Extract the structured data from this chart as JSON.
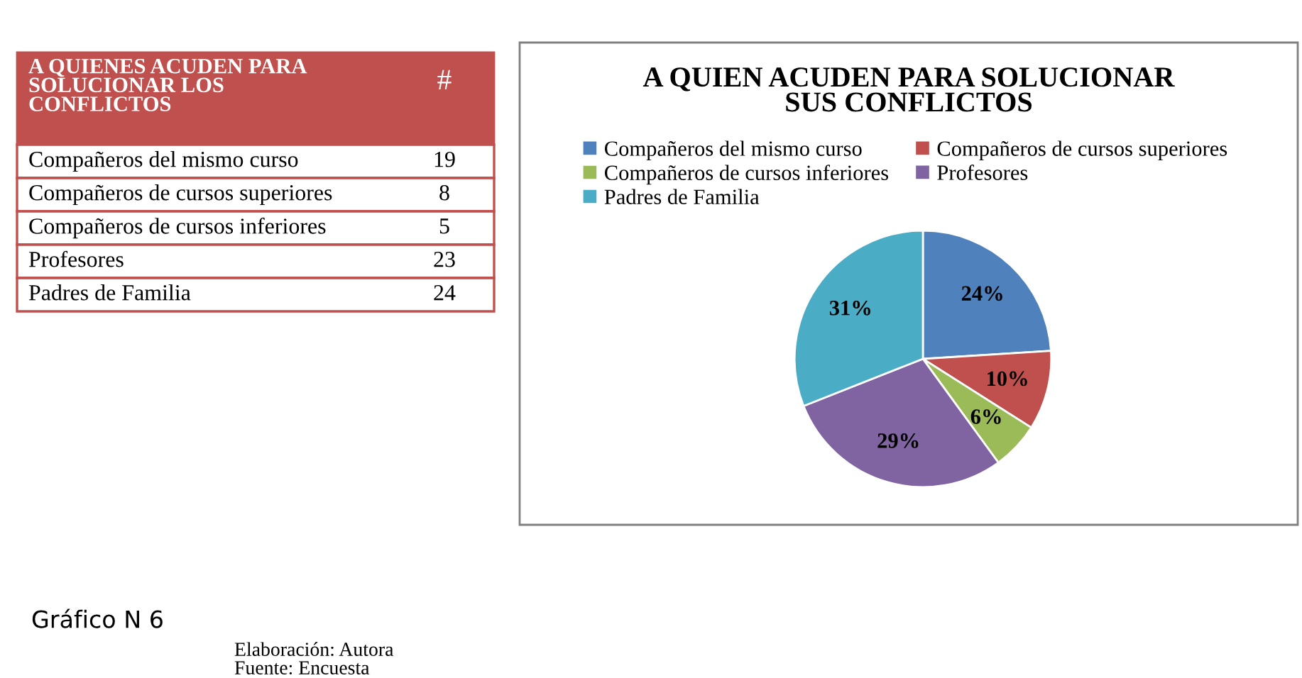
{
  "chart_data": {
    "type": "pie",
    "title": "A QUIEN ACUDEN PARA SOLUCIONAR\nSUS CONFLICTOS",
    "categories": [
      "Compañeros del mismo curso",
      "Compañeros de cursos superiores",
      "Compañeros de cursos inferiores",
      "Profesores",
      "Padres de Familia"
    ],
    "values": [
      24,
      10,
      6,
      29,
      31
    ],
    "value_labels": [
      "24%",
      "10%",
      "6%",
      "29%",
      "31%"
    ],
    "colors": [
      "#4f81bd",
      "#c0504d",
      "#9bbb59",
      "#8064a2",
      "#4bacc6"
    ],
    "legend": "top",
    "annotations": [
      "A QUIENES ACUDEN PARA\nSOLUCIONAR LOS\nCONFLICTOS",
      "#",
      "19",
      "8",
      "5",
      "23",
      "24",
      "Gráfico N 6",
      "Elaboración: Autora",
      "Fuente: Encuesta"
    ]
  }
}
